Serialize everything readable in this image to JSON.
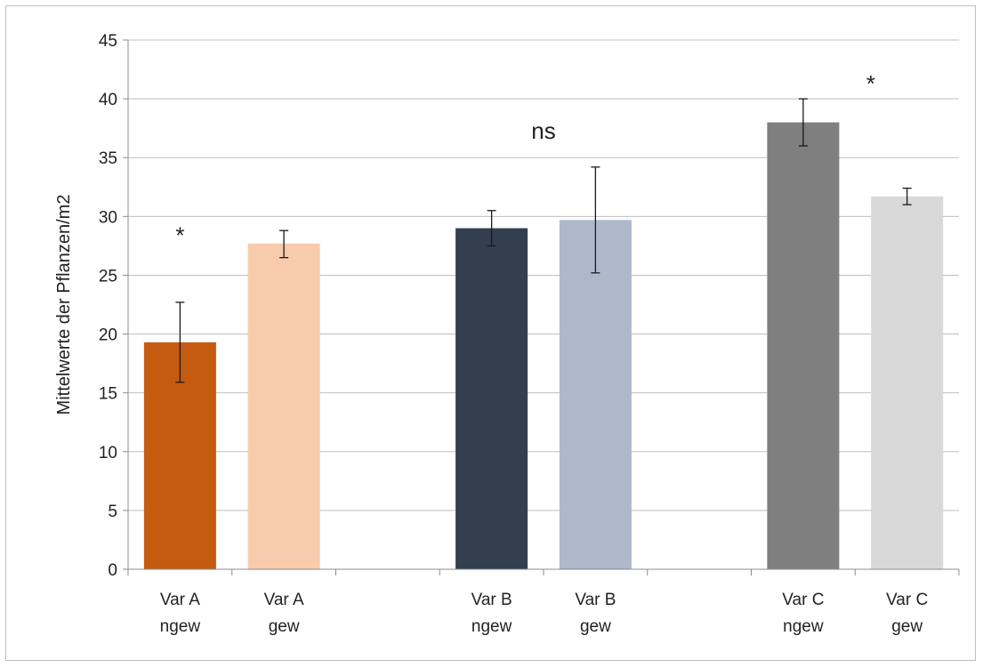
{
  "chart_data": {
    "type": "bar",
    "title": "",
    "xlabel": "",
    "ylabel": "Mittelwerte der Pflanzen/m2",
    "ylim": [
      0,
      45
    ],
    "yticks": [
      0,
      5,
      10,
      15,
      20,
      25,
      30,
      35,
      40,
      45
    ],
    "grid": true,
    "legend": "none",
    "categories": [
      [
        "Var A",
        "ngew"
      ],
      [
        "Var A",
        "gew"
      ],
      [
        "",
        ""
      ],
      [
        "Var B",
        "ngew"
      ],
      [
        "Var B",
        "gew"
      ],
      [
        "",
        ""
      ],
      [
        "Var C",
        "ngew"
      ],
      [
        "Var C",
        "gew"
      ]
    ],
    "values": [
      19.3,
      27.7,
      null,
      29.0,
      29.7,
      null,
      38.0,
      31.7
    ],
    "error_bars": [
      [
        15.9,
        22.7
      ],
      [
        26.5,
        28.8
      ],
      null,
      [
        27.5,
        30.5
      ],
      [
        25.2,
        34.2
      ],
      null,
      [
        36.0,
        40.0
      ],
      [
        31.0,
        32.4
      ]
    ],
    "colors": [
      "#c55a11",
      "#f8cbad",
      null,
      "#323f4f",
      "#adb9ca",
      null,
      "#7f7f7f",
      "#d9d9d9"
    ],
    "annotations": [
      {
        "text": "*",
        "category_index": 0,
        "y": 28.4
      },
      {
        "text": "ns",
        "category_index": 3.5,
        "y": 37.3
      },
      {
        "text": "*",
        "category_index": 6.65,
        "y": 41.3
      }
    ]
  }
}
